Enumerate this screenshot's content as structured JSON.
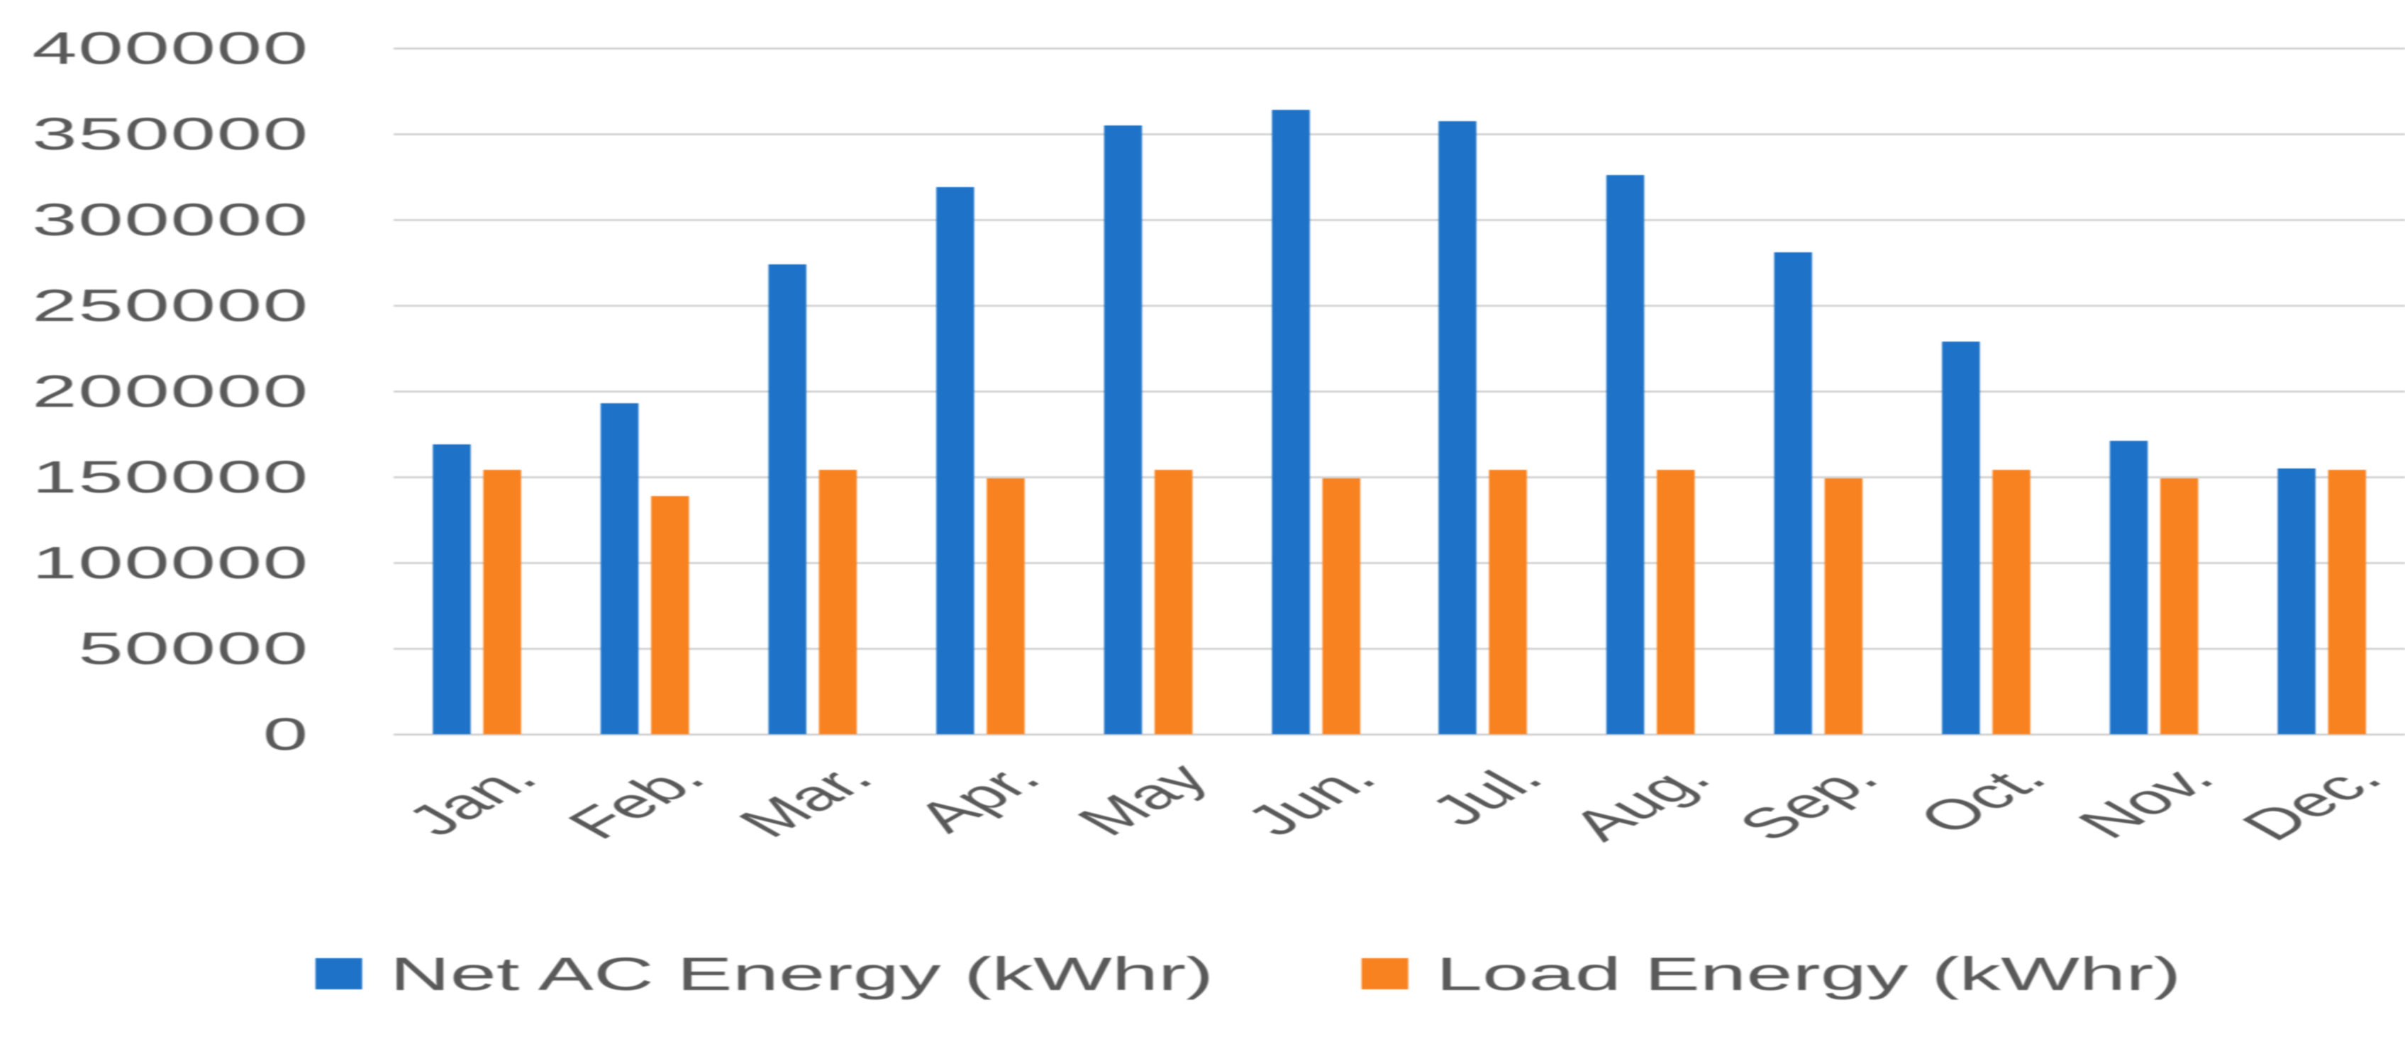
{
  "chart_data": {
    "type": "bar",
    "title": "",
    "xlabel": "",
    "ylabel": "",
    "categories": [
      "Jan.",
      "Feb.",
      "Mar.",
      "Apr.",
      "May",
      "Jun.",
      "Jul.",
      "Aug.",
      "Sep.",
      "Oct.",
      "Nov.",
      "Dec."
    ],
    "series": [
      {
        "name": "Net AC Energy (kWhr)",
        "color": "#1E73C8",
        "values": [
          169000,
          193000,
          274000,
          319000,
          355000,
          364000,
          357500,
          326000,
          281000,
          229000,
          171000,
          155000
        ]
      },
      {
        "name": "Load Energy (kWhr)",
        "color": "#F88220",
        "values": [
          154000,
          139000,
          154000,
          149000,
          154000,
          149000,
          154000,
          154000,
          149000,
          154000,
          149000,
          154000
        ]
      }
    ],
    "ylim": [
      0,
      400000
    ],
    "ytick_step": 50000,
    "ytick_labels": [
      "0",
      "50000",
      "100000",
      "150000",
      "200000",
      "250000",
      "300000",
      "350000",
      "400000"
    ],
    "grid": "horizontal",
    "legend_position": "bottom",
    "gridline_color": "#D4D4D4",
    "text_color": "#595959"
  }
}
